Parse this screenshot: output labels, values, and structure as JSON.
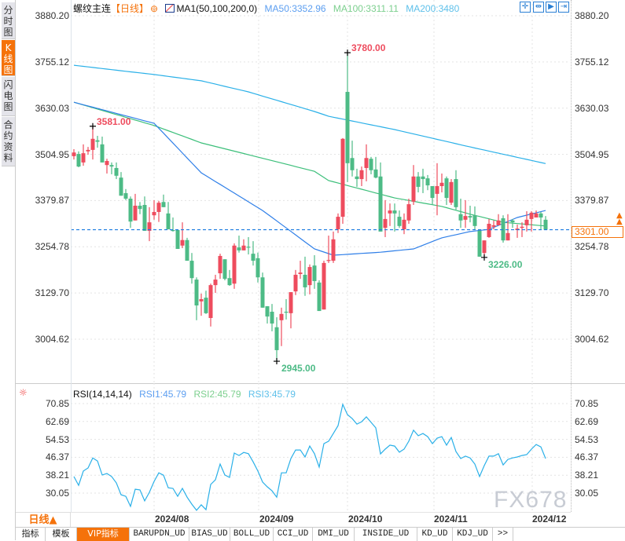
{
  "sidebar": {
    "tabs": [
      {
        "label": "分时图"
      },
      {
        "label": "K线图",
        "active": true
      },
      {
        "label": "闪电图"
      },
      {
        "label": "合约资料"
      }
    ]
  },
  "header": {
    "symbol": "螺纹主连",
    "period": "【日线】",
    "indicator": "MA1(50,100,200,0)",
    "ma50": "MA50:3352.96",
    "ma100": "MA100:3311.11",
    "ma200": "MA200:3480"
  },
  "toolbar": {
    "icons": [
      "crosshair-icon",
      "zoom-range-icon",
      "play-step-icon",
      "jump-latest-icon"
    ]
  },
  "price_axis": {
    "ticks": [
      "3880.20",
      "3755.12",
      "3630.03",
      "3504.95",
      "3379.87",
      "3254.78",
      "3129.70",
      "3004.62"
    ]
  },
  "rsi_axis": {
    "ticks": [
      "70.85",
      "62.69",
      "54.53",
      "46.37",
      "38.21",
      "30.05"
    ]
  },
  "annotations": {
    "high1": "3581.00",
    "high2": "3780.00",
    "low1": "2945.00",
    "low2": "3226.00"
  },
  "current_price": "3301.00",
  "rsi": {
    "label": "RSI(14,14,14)",
    "rsi1": "RSI1:45.79",
    "rsi2": "RSI2:45.79",
    "rsi3": "RSI3:45.79"
  },
  "dates": [
    "2024/08",
    "2024/09",
    "2024/10",
    "2024/11",
    "2024/12"
  ],
  "period_selector": "日线▲",
  "bottom_tabs": [
    "指标",
    "模板",
    "VIP指标",
    "BARUPDN_UD",
    "BIAS_UD",
    "BOLL_UD",
    "CCI_UD",
    "DMI_UD",
    "INSIDE_UD",
    "KD_UD",
    "KDJ_UD",
    ">>"
  ],
  "watermark": "FX678",
  "colors": {
    "up": "#ee4c5e",
    "down": "#4dbb86",
    "ma50": "#2f7fe8",
    "ma100": "#3cbf7a",
    "ma200": "#2ab0e8",
    "rsi": "#2ab0e8",
    "accent": "#f5720a",
    "current_line": "#1a7be0"
  },
  "chart_data": {
    "type": "candlestick",
    "ylim": [
      2945,
      3880.2
    ],
    "ohlc": [
      [
        3500,
        3519,
        3491,
        3510
      ],
      [
        3506,
        3513,
        3470,
        3472
      ],
      [
        3483,
        3532,
        3474,
        3508
      ],
      [
        3513,
        3525,
        3504,
        3517
      ],
      [
        3517,
        3581,
        3491,
        3547
      ],
      [
        3543,
        3555,
        3523,
        3539
      ],
      [
        3532,
        3553,
        3483,
        3483
      ],
      [
        3476,
        3493,
        3453,
        3487
      ],
      [
        3476,
        3483,
        3451,
        3472
      ],
      [
        3468,
        3483,
        3438,
        3447
      ],
      [
        3442,
        3457,
        3393,
        3393
      ],
      [
        3400,
        3411,
        3381,
        3385
      ],
      [
        3385,
        3391,
        3306,
        3323
      ],
      [
        3326,
        3398,
        3326,
        3366
      ],
      [
        3366,
        3376,
        3343,
        3357
      ],
      [
        3368,
        3391,
        3298,
        3298
      ],
      [
        3298,
        3362,
        3270,
        3321
      ],
      [
        3340,
        3381,
        3328,
        3349
      ],
      [
        3349,
        3379,
        3322,
        3374
      ],
      [
        3376,
        3396,
        3362,
        3362
      ],
      [
        3345,
        3376,
        3302,
        3302
      ],
      [
        3300,
        3334,
        3296,
        3298
      ],
      [
        3300,
        3300,
        3249,
        3249
      ],
      [
        3258,
        3321,
        3251,
        3273
      ],
      [
        3273,
        3279,
        3217,
        3217
      ],
      [
        3217,
        3238,
        3155,
        3170
      ],
      [
        3166,
        3172,
        3056,
        3096
      ],
      [
        3107,
        3128,
        3068,
        3113
      ],
      [
        3117,
        3136,
        3073,
        3075
      ],
      [
        3062,
        3155,
        3039,
        3151
      ],
      [
        3151,
        3179,
        3130,
        3166
      ],
      [
        3183,
        3236,
        3168,
        3230
      ],
      [
        3221,
        3221,
        3164,
        3168
      ],
      [
        3170,
        3192,
        3149,
        3151
      ],
      [
        3155,
        3264,
        3141,
        3258
      ],
      [
        3253,
        3285,
        3239,
        3245
      ],
      [
        3245,
        3275,
        3245,
        3258
      ],
      [
        3255,
        3281,
        3234,
        3253
      ],
      [
        3236,
        3270,
        3204,
        3217
      ],
      [
        3224,
        3239,
        3158,
        3172
      ],
      [
        3172,
        3185,
        3090,
        3090
      ],
      [
        3094,
        3094,
        3047,
        3066
      ],
      [
        3079,
        3100,
        3026,
        3047
      ],
      [
        3037,
        3064,
        2945,
        2975
      ],
      [
        3056,
        3090,
        2986,
        3073
      ],
      [
        3079,
        3113,
        3058,
        3077
      ],
      [
        3075,
        3132,
        3034,
        3132
      ],
      [
        3134,
        3192,
        3124,
        3179
      ],
      [
        3181,
        3217,
        3168,
        3185
      ],
      [
        3179,
        3228,
        3122,
        3145
      ],
      [
        3151,
        3207,
        3126,
        3200
      ],
      [
        3204,
        3232,
        3141,
        3162
      ],
      [
        3158,
        3164,
        3081,
        3081
      ],
      [
        3085,
        3217,
        3085,
        3211
      ],
      [
        3217,
        3285,
        3211,
        3219
      ],
      [
        3217,
        3296,
        3211,
        3275
      ],
      [
        3302,
        3345,
        3292,
        3336
      ],
      [
        3336,
        3549,
        3317,
        3547
      ],
      [
        3674,
        3780,
        3430,
        3481
      ],
      [
        3495,
        3542,
        3445,
        3462
      ],
      [
        3445,
        3466,
        3417,
        3438
      ],
      [
        3438,
        3472,
        3419,
        3462
      ],
      [
        3468,
        3532,
        3432,
        3495
      ],
      [
        3493,
        3498,
        3451,
        3462
      ],
      [
        3464,
        3498,
        3440,
        3442
      ],
      [
        3445,
        3483,
        3296,
        3296
      ],
      [
        3306,
        3381,
        3281,
        3330
      ],
      [
        3345,
        3372,
        3311,
        3353
      ],
      [
        3353,
        3372,
        3296,
        3345
      ],
      [
        3336,
        3353,
        3306,
        3311
      ],
      [
        3302,
        3345,
        3289,
        3328
      ],
      [
        3326,
        3385,
        3317,
        3370
      ],
      [
        3377,
        3476,
        3368,
        3445
      ],
      [
        3445,
        3457,
        3402,
        3417
      ],
      [
        3445,
        3466,
        3400,
        3438
      ],
      [
        3440,
        3449,
        3408,
        3421
      ],
      [
        3419,
        3419,
        3368,
        3387
      ],
      [
        3398,
        3481,
        3340,
        3419
      ],
      [
        3419,
        3453,
        3402,
        3428
      ],
      [
        3440,
        3445,
        3368,
        3387
      ],
      [
        3374,
        3438,
        3368,
        3430
      ],
      [
        3438,
        3462,
        3355,
        3362
      ],
      [
        3343,
        3385,
        3306,
        3326
      ],
      [
        3328,
        3381,
        3306,
        3338
      ],
      [
        3338,
        3366,
        3321,
        3334
      ],
      [
        3340,
        3364,
        3300,
        3311
      ],
      [
        3298,
        3300,
        3228,
        3228
      ],
      [
        3238,
        3272,
        3226,
        3272
      ],
      [
        3281,
        3330,
        3279,
        3317
      ],
      [
        3309,
        3326,
        3302,
        3313
      ],
      [
        3313,
        3343,
        3313,
        3326
      ],
      [
        3332,
        3340,
        3266,
        3272
      ],
      [
        3272,
        3343,
        3272,
        3292
      ],
      [
        3326,
        3330,
        3306,
        3321
      ],
      [
        3300,
        3315,
        3279,
        3304
      ],
      [
        3306,
        3321,
        3281,
        3309
      ],
      [
        3313,
        3351,
        3296,
        3328
      ],
      [
        3330,
        3351,
        3296,
        3347
      ],
      [
        3334,
        3353,
        3334,
        3345
      ],
      [
        3345,
        3349,
        3300,
        3334
      ],
      [
        3328,
        3338,
        3301,
        3301
      ]
    ],
    "ma50": [
      [
        0,
        3646
      ],
      [
        17,
        3589
      ],
      [
        27,
        3455
      ],
      [
        40,
        3353
      ],
      [
        45,
        3306
      ],
      [
        51,
        3249
      ],
      [
        55,
        3232
      ],
      [
        65,
        3240
      ],
      [
        72,
        3249
      ],
      [
        78,
        3279
      ],
      [
        84,
        3296
      ],
      [
        88,
        3302
      ],
      [
        94,
        3334
      ],
      [
        100,
        3353
      ]
    ],
    "ma100": [
      [
        0,
        3646
      ],
      [
        17,
        3583
      ],
      [
        27,
        3536
      ],
      [
        51,
        3459
      ],
      [
        54,
        3434
      ],
      [
        68,
        3387
      ],
      [
        78,
        3364
      ],
      [
        84,
        3343
      ],
      [
        91,
        3321
      ],
      [
        100,
        3311
      ]
    ],
    "ma200": [
      [
        0,
        3746
      ],
      [
        17,
        3721
      ],
      [
        27,
        3704
      ],
      [
        37,
        3674
      ],
      [
        51,
        3621
      ],
      [
        54,
        3608
      ],
      [
        68,
        3572
      ],
      [
        84,
        3525
      ],
      [
        100,
        3480
      ]
    ],
    "rsi_ylim": [
      22,
      71
    ],
    "rsi_values": [
      37.6,
      33.6,
      40.1,
      41.5,
      46.1,
      44.7,
      38.3,
      39,
      37.6,
      34.7,
      29.3,
      28.6,
      24,
      31.8,
      31.5,
      26.5,
      30.4,
      35.4,
      39.3,
      38.2,
      32.5,
      32.2,
      28.6,
      32.2,
      28.2,
      25,
      22.2,
      24.7,
      22.5,
      34,
      36.1,
      43.3,
      38.3,
      37.2,
      48.3,
      47.2,
      48.6,
      48,
      44.3,
      40.1,
      35.1,
      32.9,
      31.1,
      28.2,
      39.3,
      39.3,
      45.8,
      49.7,
      49.7,
      46.5,
      51.5,
      48,
      41.9,
      52.6,
      53.7,
      57.2,
      60.8,
      70.5,
      65.8,
      64,
      61.5,
      62.6,
      64.8,
      62.3,
      59.8,
      47.9,
      50.1,
      51.9,
      51.5,
      48.7,
      50.1,
      53.7,
      58.7,
      56.2,
      57.2,
      55.8,
      52.6,
      55.1,
      55.8,
      51.9,
      55.4,
      49,
      45.8,
      46.9,
      46.1,
      43.3,
      37.6,
      42.6,
      46.9,
      46.9,
      48,
      42.9,
      45.4,
      46.1,
      46.5,
      47.2,
      47.6,
      50.1,
      52.2,
      51.1,
      45.8
    ]
  }
}
